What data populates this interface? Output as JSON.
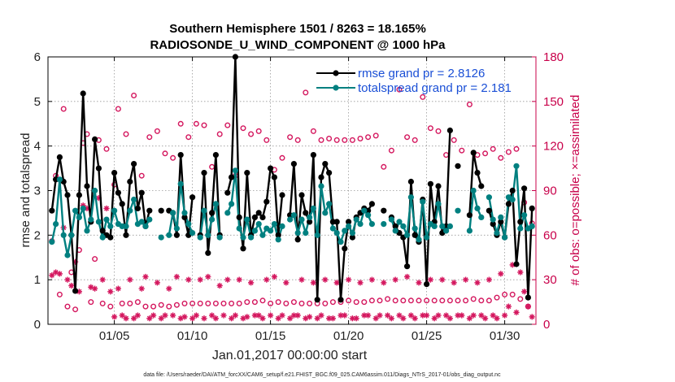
{
  "chart_data": {
    "type": "line",
    "title_line1": "Southern Hemisphere 1501 / 8263 = 18.165%",
    "title_line2": "RADIOSONDE_U_WIND_COMPONENT @ 1000 hPa",
    "xlabel": "Jan.01,2017 00:00:00 start",
    "ylabel": "rmse and totalspread",
    "ylabel_right": "# of obs: o=possible; ×=assimilated",
    "footnote": "data file: /Users/raeder/DAI/ATM_forcXX/CAM6_setup/f.e21.FHIST_BGC.f09_025.CAM6assim.011/Diags_NTrS_2017-01/obs_diag_output.nc",
    "xlim": [
      0.75,
      32.0
    ],
    "ylim": [
      0,
      6
    ],
    "ylim_right": [
      0,
      180
    ],
    "x_ticks": [
      5,
      10,
      15,
      20,
      25,
      30
    ],
    "x_tick_labels": [
      "01/05",
      "01/10",
      "01/15",
      "01/20",
      "01/25",
      "01/30"
    ],
    "y_ticks": [
      0,
      1,
      2,
      3,
      4,
      5,
      6
    ],
    "y_tick_labels": [
      "0",
      "1",
      "2",
      "3",
      "4",
      "5",
      "6"
    ],
    "y_right_ticks": [
      0,
      30,
      60,
      90,
      120,
      150,
      180
    ],
    "y_right_tick_labels": [
      "0",
      "30",
      "60",
      "90",
      "120",
      "150",
      "180"
    ],
    "colors": {
      "rmse": "#000000",
      "spread": "#008080",
      "obs": "#d4175e",
      "legend_text": "#1a4fd6"
    },
    "legend": [
      "rmse grand pr = 2.8126",
      "totalspread grand pr = 2.181"
    ],
    "x": [
      1.0,
      1.25,
      1.5,
      1.75,
      2.0,
      2.25,
      2.5,
      2.75,
      3.0,
      3.25,
      3.5,
      3.75,
      4.0,
      4.25,
      4.5,
      4.75,
      5.0,
      5.25,
      5.5,
      5.75,
      6.0,
      6.25,
      6.5,
      6.75,
      7.0,
      7.25,
      7.5,
      7.75,
      8.0,
      8.25,
      8.5,
      8.75,
      9.0,
      9.25,
      9.5,
      9.75,
      10.0,
      10.25,
      10.5,
      10.75,
      11.0,
      11.25,
      11.5,
      11.75,
      12.0,
      12.25,
      12.5,
      12.75,
      13.0,
      13.25,
      13.5,
      13.75,
      14.0,
      14.25,
      14.5,
      14.75,
      15.0,
      15.25,
      15.5,
      15.75,
      16.0,
      16.25,
      16.5,
      16.75,
      17.0,
      17.25,
      17.5,
      17.75,
      18.0,
      18.25,
      18.5,
      18.75,
      19.0,
      19.25,
      19.5,
      19.75,
      20.0,
      20.25,
      20.5,
      20.75,
      21.0,
      21.25,
      21.5,
      21.75,
      22.0,
      22.25,
      22.5,
      22.75,
      23.0,
      23.25,
      23.5,
      23.75,
      24.0,
      24.25,
      24.5,
      24.75,
      25.0,
      25.25,
      25.5,
      25.75,
      26.0,
      26.25,
      26.5,
      26.75,
      27.0,
      27.25,
      27.5,
      27.75,
      28.0,
      28.25,
      28.5,
      28.75,
      29.0,
      29.25,
      29.5,
      29.75,
      30.0,
      30.25,
      30.5,
      30.75,
      31.0,
      31.25,
      31.5,
      31.75
    ],
    "series": [
      {
        "name": "rmse",
        "values": [
          2.55,
          3.25,
          3.75,
          3.2,
          2.9,
          2.0,
          0.75,
          2.9,
          5.18,
          3.1,
          2.3,
          4.15,
          3.5,
          2.1,
          2.0,
          1.95,
          3.4,
          2.95,
          2.7,
          2.0,
          3.2,
          3.6,
          2.6,
          2.95,
          2.2,
          2.55,
          null,
          null,
          2.55,
          null,
          2.55,
          2.5,
          2.0,
          3.8,
          2.4,
          2.0,
          2.85,
          null,
          2.0,
          3.4,
          1.6,
          2.5,
          3.8,
          2.0,
          null,
          2.95,
          3.3,
          6.0,
          2.4,
          1.7,
          3.4,
          2.0,
          2.4,
          2.5,
          2.4,
          2.75,
          3.5,
          3.3,
          2.0,
          2.9,
          null,
          2.45,
          3.6,
          1.9,
          2.9,
          2.5,
          2.3,
          3.8,
          0.55,
          3.3,
          3.6,
          3.4,
          2.3,
          2.3,
          0.55,
          1.7,
          2.3,
          1.95,
          2.4,
          2.5,
          2.6,
          2.55,
          2.7,
          null,
          null,
          2.55,
          null,
          2.4,
          2.2,
          2.05,
          1.95,
          1.3,
          3.2,
          2.0,
          1.85,
          2.8,
          0.9,
          3.15,
          2.3,
          3.1,
          2.05,
          2.2,
          4.35,
          null,
          3.55,
          null,
          null,
          2.45,
          3.85,
          3.4,
          3.1,
          null,
          2.55,
          2.25,
          2.0,
          2.3,
          1.95,
          2.7,
          3.0,
          1.35,
          2.3,
          3.05,
          0.6,
          2.6
        ]
      },
      {
        "name": "totalspread",
        "values": [
          1.85,
          2.25,
          3.25,
          2.0,
          1.55,
          2.0,
          2.55,
          2.4,
          2.6,
          2.1,
          2.35,
          3.0,
          2.3,
          1.95,
          2.35,
          2.2,
          2.55,
          2.25,
          2.2,
          2.2,
          2.55,
          2.8,
          2.25,
          2.3,
          2.2,
          2.35,
          null,
          null,
          1.95,
          null,
          2.0,
          2.5,
          2.15,
          3.15,
          2.5,
          2.25,
          2.05,
          null,
          1.95,
          2.55,
          2.0,
          2.35,
          2.7,
          1.95,
          null,
          2.5,
          2.7,
          3.45,
          2.15,
          1.95,
          2.35,
          1.95,
          2.1,
          2.25,
          2.0,
          2.15,
          2.1,
          2.25,
          1.9,
          2.2,
          null,
          2.35,
          2.45,
          2.05,
          2.35,
          2.05,
          2.4,
          2.6,
          2.0,
          3.1,
          2.5,
          2.7,
          2.15,
          2.05,
          1.85,
          2.1,
          2.2,
          2.05,
          2.35,
          2.25,
          2.55,
          2.45,
          2.25,
          null,
          null,
          2.25,
          null,
          2.35,
          2.1,
          2.3,
          2.2,
          2.0,
          2.85,
          2.15,
          1.9,
          2.75,
          1.95,
          2.25,
          2.2,
          2.7,
          2.2,
          2.1,
          2.2,
          null,
          2.55,
          null,
          null,
          2.1,
          3.0,
          2.6,
          2.4,
          null,
          2.85,
          2.35,
          2.05,
          2.4,
          1.95,
          2.85,
          2.8,
          3.55,
          2.15,
          2.45,
          2.15,
          2.2
        ]
      },
      {
        "name": "obs_possible",
        "values": [
          56,
          100,
          20,
          145,
          12,
          35,
          10,
          50,
          122,
          128,
          15,
          44,
          124,
          14,
          118,
          12,
          94,
          145,
          14,
          128,
          14,
          154,
          15,
          100,
          12,
          126,
          12,
          130,
          13,
          115,
          12,
          112,
          13,
          135,
          14,
          126,
          14,
          135,
          14,
          134,
          14,
          106,
          14,
          128,
          14,
          134,
          14,
          100,
          14,
          132,
          15,
          128,
          15,
          130,
          16,
          124,
          14,
          104,
          15,
          112,
          14,
          126,
          15,
          124,
          14,
          156,
          14,
          130,
          14,
          124,
          14,
          125,
          15,
          124,
          15,
          124,
          16,
          124,
          15,
          125,
          15,
          126,
          16,
          127,
          16,
          106,
          17,
          117,
          16,
          158,
          16,
          126,
          16,
          124,
          16,
          153,
          16,
          132,
          16,
          130,
          16,
          114,
          16,
          124,
          16,
          117,
          16,
          148,
          17,
          114,
          16,
          115,
          16,
          118,
          18,
          112,
          20,
          116,
          20,
          118,
          17,
          82,
          12,
          68
        ]
      },
      {
        "name": "obs_assimilated",
        "values": [
          33,
          35,
          34,
          65,
          30,
          26,
          42,
          22,
          80,
          78,
          25,
          24,
          85,
          30,
          78,
          22,
          5,
          24,
          6,
          4,
          30,
          4,
          6,
          24,
          32,
          4,
          6,
          28,
          4,
          6,
          24,
          6,
          32,
          4,
          5,
          30,
          4,
          6,
          30,
          4,
          32,
          6,
          4,
          26,
          6,
          30,
          4,
          6,
          30,
          4,
          5,
          28,
          6,
          6,
          4,
          30,
          6,
          32,
          4,
          6,
          28,
          4,
          6,
          6,
          30,
          4,
          5,
          28,
          4,
          6,
          30,
          4,
          4,
          28,
          6,
          6,
          30,
          4,
          4,
          28,
          6,
          6,
          30,
          4,
          6,
          28,
          6,
          4,
          30,
          6,
          4,
          32,
          6,
          4,
          28,
          6,
          6,
          30,
          4,
          6,
          30,
          6,
          4,
          28,
          6,
          6,
          30,
          4,
          6,
          28,
          6,
          4,
          30,
          6,
          4,
          34,
          6,
          12,
          40,
          8,
          35,
          22,
          12,
          5
        ]
      }
    ]
  }
}
